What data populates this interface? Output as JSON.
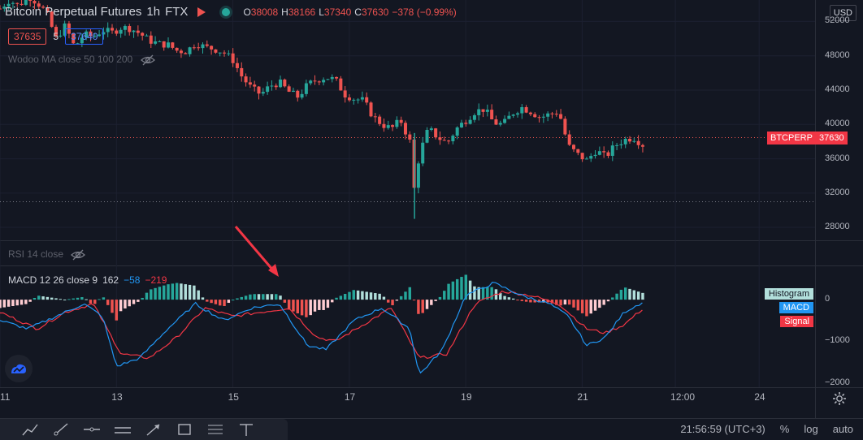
{
  "symbol": {
    "title": "Bitcoin Perpetual Futures",
    "interval": "1h",
    "exchange": "FTX",
    "ohlc": {
      "open_key": "O",
      "open": "38008",
      "high_key": "H",
      "high": "38166",
      "low_key": "L",
      "low": "37340",
      "close_key": "C",
      "close": "37630",
      "change": "−378 (−0.99%)"
    },
    "bid": "37635",
    "spread": "5",
    "ask": "37640"
  },
  "indicators": {
    "ma_label": "Wodoo MA close 50 100 200",
    "rsi_label": "RSI 14 close",
    "macd": {
      "label": "MACD 12 26 close 9",
      "hist": "162",
      "macd": "−58",
      "signal": "−219"
    }
  },
  "price_scale": {
    "currency": "USD",
    "ticks": [
      "52000",
      "48000",
      "44000",
      "40000",
      "36000",
      "32000",
      "28000"
    ],
    "current_symbol": "BTCPERP",
    "current_price": "37630"
  },
  "macd_scale": {
    "ticks": [
      "0",
      "−1000",
      "−2000"
    ],
    "legend": [
      {
        "label": "Histogram",
        "bg": "#b2dfdb",
        "fg": "#131722"
      },
      {
        "label": "MACD",
        "bg": "#2196f3",
        "fg": "#ffffff"
      },
      {
        "label": "Signal",
        "bg": "#f23645",
        "fg": "#ffffff"
      }
    ]
  },
  "time_axis": {
    "ticks": [
      "11",
      "13",
      "15",
      "17",
      "19",
      "21",
      "12:00",
      "24"
    ]
  },
  "status_bar": {
    "time": "21:56:59 (UTC+3)",
    "percent": "%",
    "log": "log",
    "auto": "auto"
  },
  "drawing_tools": [
    "trend-line-tool",
    "ray-tool",
    "horizontal-line-tool",
    "parallel-channel-tool",
    "arrow-tool",
    "rectangle-tool",
    "fib-retracement-tool",
    "date-range-tool"
  ],
  "colors": {
    "background": "#131722",
    "up": "#26a69a",
    "down": "#ef5350",
    "macd_line": "#2196f3",
    "signal_line": "#f23645",
    "annotation_arrow": "#f23645"
  },
  "chart_data": {
    "type": "candlestick",
    "price_path": [
      [
        0,
        53500
      ],
      [
        2,
        54500
      ],
      [
        4,
        53800
      ],
      [
        6,
        55000
      ],
      [
        8,
        54200
      ],
      [
        10,
        53000
      ],
      [
        12,
        50000
      ],
      [
        14,
        51500
      ],
      [
        16,
        49000
      ],
      [
        18,
        50500
      ],
      [
        20,
        50200
      ],
      [
        22,
        51000
      ],
      [
        24,
        50700
      ],
      [
        26,
        51300
      ],
      [
        28,
        51200
      ],
      [
        30,
        50600
      ],
      [
        32,
        49800
      ],
      [
        34,
        49400
      ],
      [
        36,
        49300
      ],
      [
        38,
        48600
      ],
      [
        40,
        48500
      ],
      [
        42,
        49500
      ],
      [
        44,
        49000
      ],
      [
        46,
        48800
      ],
      [
        48,
        48400
      ],
      [
        50,
        47500
      ],
      [
        52,
        45500
      ],
      [
        54,
        44200
      ],
      [
        56,
        43500
      ],
      [
        58,
        44500
      ],
      [
        60,
        44900
      ],
      [
        62,
        43800
      ],
      [
        64,
        43200
      ],
      [
        66,
        44600
      ],
      [
        68,
        45200
      ],
      [
        70,
        45500
      ],
      [
        72,
        45200
      ],
      [
        74,
        43500
      ],
      [
        76,
        43000
      ],
      [
        78,
        42800
      ],
      [
        80,
        41000
      ],
      [
        82,
        40000
      ],
      [
        84,
        39500
      ],
      [
        86,
        40500
      ],
      [
        88,
        38000
      ],
      [
        89,
        32000
      ],
      [
        90,
        36500
      ],
      [
        92,
        39500
      ],
      [
        94,
        38500
      ],
      [
        96,
        37800
      ],
      [
        98,
        39500
      ],
      [
        100,
        40500
      ],
      [
        102,
        41500
      ],
      [
        104,
        41800
      ],
      [
        106,
        40200
      ],
      [
        108,
        40000
      ],
      [
        110,
        41300
      ],
      [
        112,
        42000
      ],
      [
        114,
        41500
      ],
      [
        116,
        40800
      ],
      [
        118,
        41200
      ],
      [
        120,
        41500
      ],
      [
        122,
        37500
      ],
      [
        124,
        36500
      ],
      [
        126,
        35800
      ],
      [
        128,
        37000
      ],
      [
        130,
        36200
      ],
      [
        132,
        37500
      ],
      [
        134,
        38200
      ],
      [
        136,
        38500
      ],
      [
        138,
        37630
      ]
    ],
    "macd_path": [
      [
        0,
        -500
      ],
      [
        6,
        -700
      ],
      [
        12,
        -400
      ],
      [
        18,
        -100
      ],
      [
        22,
        -400
      ],
      [
        25,
        -1600
      ],
      [
        30,
        -1400
      ],
      [
        36,
        -700
      ],
      [
        42,
        -100
      ],
      [
        48,
        -500
      ],
      [
        54,
        -200
      ],
      [
        60,
        -100
      ],
      [
        66,
        -1100
      ],
      [
        70,
        -1200
      ],
      [
        76,
        -500
      ],
      [
        82,
        -200
      ],
      [
        88,
        -700
      ],
      [
        90,
        -1800
      ],
      [
        95,
        -1200
      ],
      [
        100,
        100
      ],
      [
        106,
        400
      ],
      [
        112,
        100
      ],
      [
        118,
        -100
      ],
      [
        122,
        -400
      ],
      [
        126,
        -1100
      ],
      [
        130,
        -900
      ],
      [
        134,
        -300
      ],
      [
        138,
        -58
      ]
    ],
    "signal_path": [
      [
        0,
        -300
      ],
      [
        8,
        -700
      ],
      [
        14,
        -300
      ],
      [
        20,
        -100
      ],
      [
        26,
        -1300
      ],
      [
        32,
        -1400
      ],
      [
        38,
        -900
      ],
      [
        44,
        -200
      ],
      [
        50,
        -400
      ],
      [
        56,
        -300
      ],
      [
        62,
        -200
      ],
      [
        68,
        -900
      ],
      [
        72,
        -1000
      ],
      [
        78,
        -600
      ],
      [
        84,
        -200
      ],
      [
        90,
        -1400
      ],
      [
        96,
        -1300
      ],
      [
        102,
        -100
      ],
      [
        108,
        200
      ],
      [
        114,
        100
      ],
      [
        120,
        -100
      ],
      [
        126,
        -700
      ],
      [
        130,
        -800
      ],
      [
        134,
        -600
      ],
      [
        138,
        -219
      ]
    ],
    "price_range": [
      26500,
      54500
    ],
    "macd_range": [
      -2100,
      800
    ],
    "grid": true
  }
}
